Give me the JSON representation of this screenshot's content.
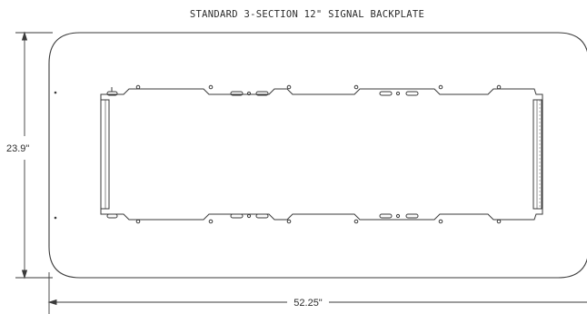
{
  "drawing": {
    "title": "STANDARD 3-SECTION 12\" SIGNAL BACKPLATE",
    "dimensions": {
      "height_label": "23.9\"",
      "width_label": "52.25\""
    },
    "line_color": "#3a3a3a",
    "background_color": "#ffffff"
  }
}
